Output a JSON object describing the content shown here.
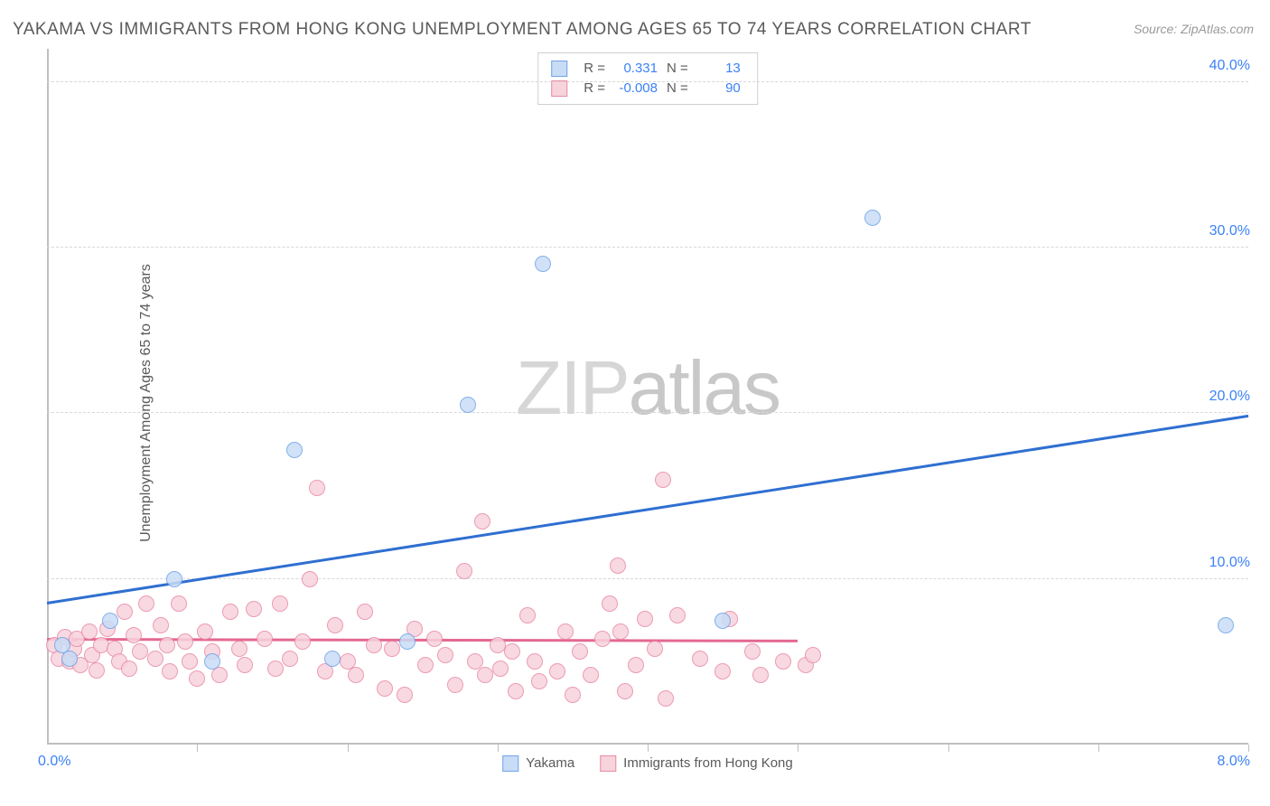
{
  "title": "YAKAMA VS IMMIGRANTS FROM HONG KONG UNEMPLOYMENT AMONG AGES 65 TO 74 YEARS CORRELATION CHART",
  "source": "Source: ZipAtlas.com",
  "ylabel": "Unemployment Among Ages 65 to 74 years",
  "watermark_a": "ZIP",
  "watermark_b": "atlas",
  "chart": {
    "type": "scatter",
    "xlim": [
      0.0,
      8.0
    ],
    "ylim": [
      0.0,
      42.0
    ],
    "x_ticks_pct": [
      1,
      2,
      3,
      4,
      5,
      6,
      7,
      8
    ],
    "y_ticks": [
      10.0,
      20.0,
      30.0,
      40.0
    ],
    "x_origin_label": "0.0%",
    "x_max_label": "8.0%",
    "background_color": "#ffffff",
    "grid_color": "#d8d8d8",
    "axis_color": "#bfbfbf",
    "tick_label_color": "#3b82f6",
    "marker_radius": 9,
    "series": [
      {
        "name": "Yakama",
        "fill": "#c9dcf6",
        "stroke": "#6fa4e8",
        "R": "0.331",
        "N": "13",
        "trend": {
          "x1": 0.0,
          "y1": 8.5,
          "x2": 8.0,
          "y2": 19.8,
          "color": "#2f6fd1",
          "width": 2.5
        },
        "points": [
          [
            0.1,
            6.0
          ],
          [
            0.15,
            5.2
          ],
          [
            0.42,
            7.5
          ],
          [
            0.85,
            10.0
          ],
          [
            1.1,
            5.0
          ],
          [
            1.65,
            17.8
          ],
          [
            1.9,
            5.2
          ],
          [
            2.4,
            6.2
          ],
          [
            2.8,
            20.5
          ],
          [
            3.3,
            29.0
          ],
          [
            4.5,
            7.5
          ],
          [
            5.5,
            31.8
          ],
          [
            7.85,
            7.2
          ]
        ]
      },
      {
        "name": "Immigrants from Hong Kong",
        "fill": "#f7d3dc",
        "stroke": "#e98aa5",
        "R": "-0.008",
        "N": "90",
        "trend": {
          "x1": 0.0,
          "y1": 6.3,
          "x2": 5.0,
          "y2": 6.2,
          "color": "#e46892",
          "width": 2.5
        },
        "points": [
          [
            0.05,
            6.0
          ],
          [
            0.08,
            5.2
          ],
          [
            0.12,
            6.5
          ],
          [
            0.15,
            5.0
          ],
          [
            0.18,
            5.8
          ],
          [
            0.2,
            6.4
          ],
          [
            0.22,
            4.8
          ],
          [
            0.28,
            6.8
          ],
          [
            0.3,
            5.4
          ],
          [
            0.33,
            4.5
          ],
          [
            0.36,
            6.0
          ],
          [
            0.4,
            7.0
          ],
          [
            0.45,
            5.8
          ],
          [
            0.48,
            5.0
          ],
          [
            0.52,
            8.0
          ],
          [
            0.55,
            4.6
          ],
          [
            0.58,
            6.6
          ],
          [
            0.62,
            5.6
          ],
          [
            0.66,
            8.5
          ],
          [
            0.72,
            5.2
          ],
          [
            0.76,
            7.2
          ],
          [
            0.8,
            6.0
          ],
          [
            0.82,
            4.4
          ],
          [
            0.88,
            8.5
          ],
          [
            0.92,
            6.2
          ],
          [
            0.95,
            5.0
          ],
          [
            1.0,
            4.0
          ],
          [
            1.05,
            6.8
          ],
          [
            1.1,
            5.6
          ],
          [
            1.15,
            4.2
          ],
          [
            1.22,
            8.0
          ],
          [
            1.28,
            5.8
          ],
          [
            1.32,
            4.8
          ],
          [
            1.38,
            8.2
          ],
          [
            1.45,
            6.4
          ],
          [
            1.52,
            4.6
          ],
          [
            1.55,
            8.5
          ],
          [
            1.62,
            5.2
          ],
          [
            1.7,
            6.2
          ],
          [
            1.75,
            10.0
          ],
          [
            1.8,
            15.5
          ],
          [
            1.85,
            4.4
          ],
          [
            1.92,
            7.2
          ],
          [
            2.0,
            5.0
          ],
          [
            2.06,
            4.2
          ],
          [
            2.12,
            8.0
          ],
          [
            2.18,
            6.0
          ],
          [
            2.25,
            3.4
          ],
          [
            2.3,
            5.8
          ],
          [
            2.38,
            3.0
          ],
          [
            2.45,
            7.0
          ],
          [
            2.52,
            4.8
          ],
          [
            2.58,
            6.4
          ],
          [
            2.65,
            5.4
          ],
          [
            2.72,
            3.6
          ],
          [
            2.78,
            10.5
          ],
          [
            2.85,
            5.0
          ],
          [
            2.9,
            13.5
          ],
          [
            2.92,
            4.2
          ],
          [
            3.0,
            6.0
          ],
          [
            3.02,
            4.6
          ],
          [
            3.1,
            5.6
          ],
          [
            3.12,
            3.2
          ],
          [
            3.2,
            7.8
          ],
          [
            3.25,
            5.0
          ],
          [
            3.28,
            3.8
          ],
          [
            3.4,
            4.4
          ],
          [
            3.45,
            6.8
          ],
          [
            3.5,
            3.0
          ],
          [
            3.55,
            5.6
          ],
          [
            3.62,
            4.2
          ],
          [
            3.7,
            6.4
          ],
          [
            3.75,
            8.5
          ],
          [
            3.8,
            10.8
          ],
          [
            3.82,
            6.8
          ],
          [
            3.85,
            3.2
          ],
          [
            3.92,
            4.8
          ],
          [
            3.98,
            7.6
          ],
          [
            4.05,
            5.8
          ],
          [
            4.1,
            16.0
          ],
          [
            4.12,
            2.8
          ],
          [
            4.2,
            7.8
          ],
          [
            4.35,
            5.2
          ],
          [
            4.5,
            4.4
          ],
          [
            4.55,
            7.6
          ],
          [
            4.7,
            5.6
          ],
          [
            4.75,
            4.2
          ],
          [
            4.9,
            5.0
          ],
          [
            5.05,
            4.8
          ],
          [
            5.1,
            5.4
          ]
        ]
      }
    ],
    "legend_labels": {
      "R": "R =",
      "N": "N ="
    }
  }
}
